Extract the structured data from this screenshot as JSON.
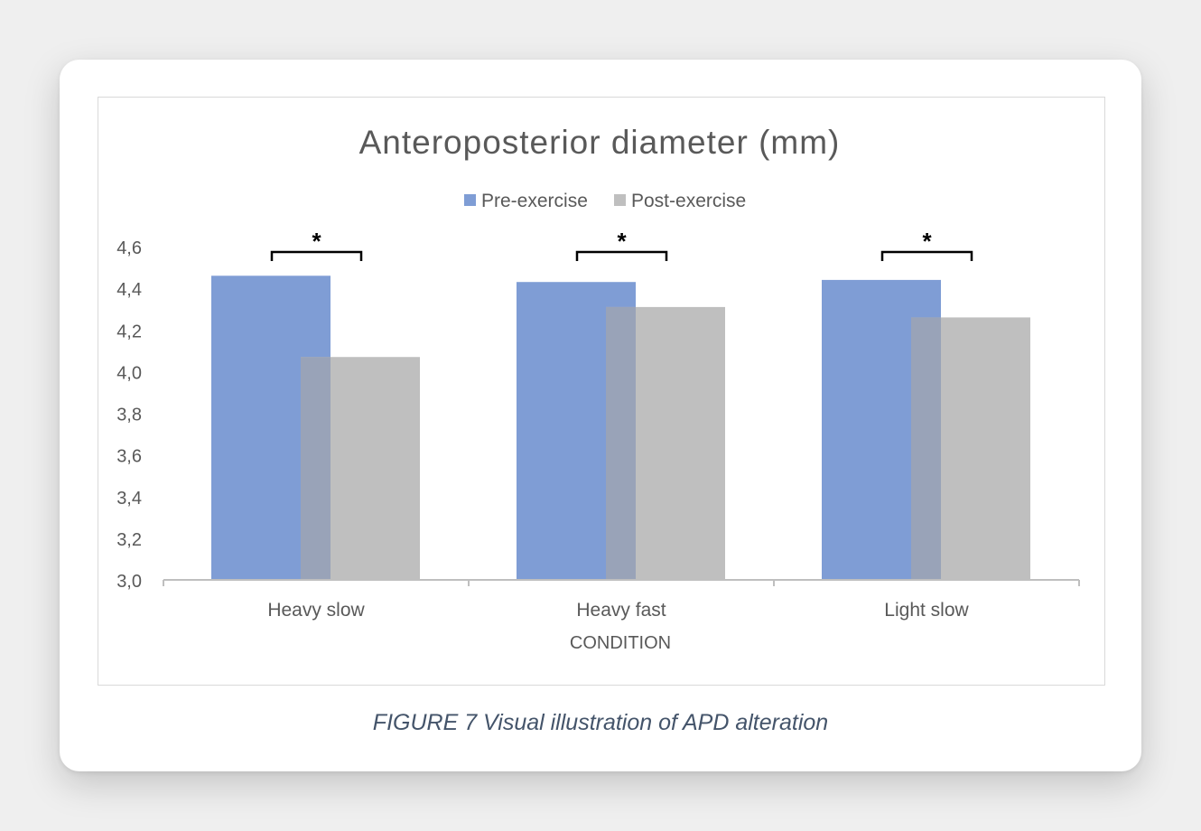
{
  "caption": "FIGURE 7 Visual illustration of APD alteration",
  "colors": {
    "pre": "#7f9dd5",
    "post": "#bfbfbf",
    "overlap": "#99a3b8",
    "axis": "#bfbfbf",
    "text": "#595959",
    "bracket": "#000000"
  },
  "chart_data": {
    "type": "bar",
    "title": "Anteroposterior diameter (mm)",
    "xlabel": "CONDITION",
    "ylabel": "",
    "categories": [
      "Heavy slow",
      "Heavy fast",
      "Light slow"
    ],
    "series": [
      {
        "name": "Pre-exercise",
        "values": [
          4.46,
          4.43,
          4.44
        ]
      },
      {
        "name": "Post-exercise",
        "values": [
          4.07,
          4.31,
          4.26
        ]
      }
    ],
    "ylim": [
      3.0,
      4.6
    ],
    "yticks": [
      "3,0",
      "3,2",
      "3,4",
      "3,6",
      "3,8",
      "4,0",
      "4,2",
      "4,4",
      "4,6"
    ],
    "legend_position": "top",
    "grid": false,
    "annotations": [
      "*",
      "*",
      "*"
    ]
  }
}
